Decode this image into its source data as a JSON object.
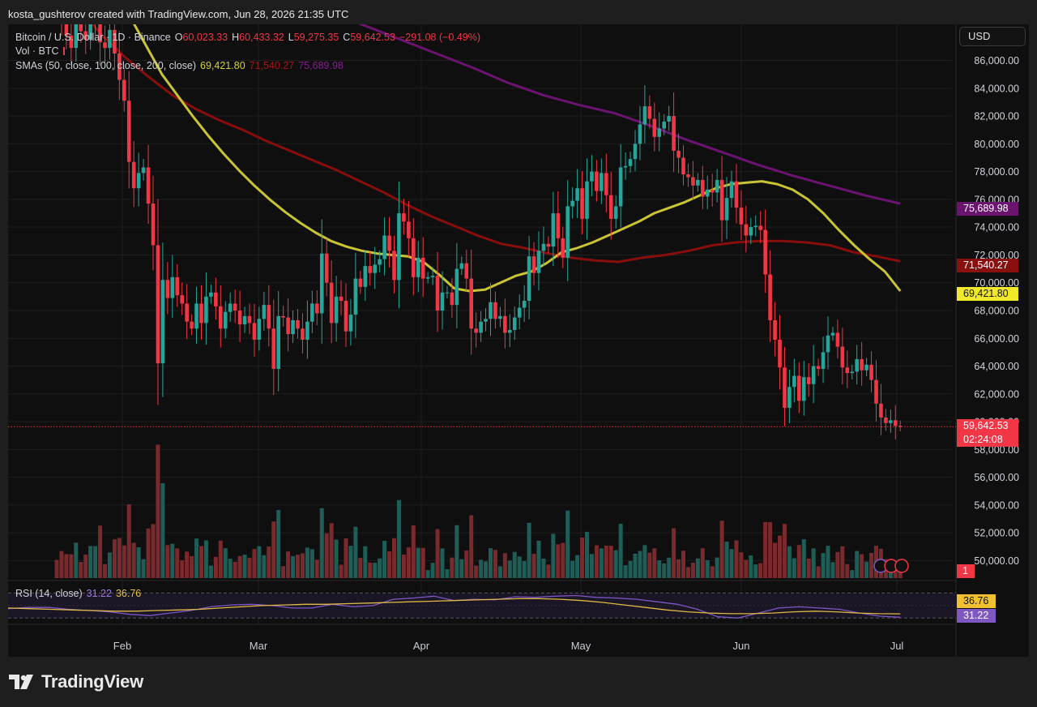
{
  "caption": "kosta_gushterov created with TradingView.com, Jun 28, 2026 21:35 UTC",
  "symbol_legend": {
    "name": "Bitcoin / U.S. Dollar · 1D · Binance",
    "open_label": "O",
    "open": "60,023.33",
    "high_label": "H",
    "high": "60,433.32",
    "low_label": "L",
    "low": "59,275.35",
    "close_label": "C",
    "close": "59,642.53",
    "change": "−291.08 (−0.49%)"
  },
  "volume_legend": "Vol · BTC",
  "sma_legend": {
    "label": "SMAs (50, close, 100, close, 200, close)",
    "sma50": "69,421.80",
    "sma100": "71,540.27",
    "sma200": "75,689.98"
  },
  "rsi_legend": {
    "label": "RSI (14, close)",
    "rsi": "31.22",
    "ma": "36.76"
  },
  "currency_button": "USD",
  "badges": {
    "sma200": "75,689.98",
    "sma100": "71,540.27",
    "sma50": "69,421.80",
    "last_price": "59,642.53",
    "countdown": "02:24:08",
    "volume_count": "1",
    "rsi_ma": "36.76",
    "rsi": "31.22"
  },
  "logo_text": "TradingView",
  "colors": {
    "up": "#26a69a",
    "down": "#f23645",
    "sma50": "#c9c433",
    "sma100": "#880e0e",
    "sma200": "#6a1470",
    "rsi": "#7e57c2",
    "rsi_ma": "#e0b843",
    "background": "#0f0f0f",
    "page": "#1e1e1e"
  },
  "chart_data": {
    "type": "candlestick",
    "title": "Bitcoin / U.S. Dollar · 1D · Binance",
    "x_ticks": [
      "Feb",
      "Mar",
      "Apr",
      "May",
      "Jun",
      "Jul"
    ],
    "y_ticks": [
      "50,000.00",
      "52,000.00",
      "54,000.00",
      "56,000.00",
      "58,000.00",
      "60,000.00",
      "62,000.00",
      "64,000.00",
      "66,000.00",
      "68,000.00",
      "70,000.00",
      "72,000.00",
      "74,000.00",
      "76,000.00",
      "78,000.00",
      "80,000.00",
      "82,000.00",
      "84,000.00",
      "86,000.00"
    ],
    "price_range": [
      48800,
      88600
    ],
    "close": [
      89500,
      88600,
      87800,
      86900,
      88700,
      88100,
      87500,
      88800,
      90200,
      87300,
      86900,
      88200,
      86500,
      84600,
      83100,
      78700,
      76800,
      77900,
      78300,
      75700,
      72700,
      64200,
      70200,
      68900,
      70400,
      69100,
      68500,
      67200,
      66700,
      68500,
      67100,
      69000,
      69300,
      68300,
      66700,
      67900,
      68500,
      68000,
      67000,
      67600,
      67100,
      65900,
      67400,
      68400,
      66700,
      63800,
      67600,
      67500,
      66300,
      67300,
      66700,
      65900,
      67200,
      68500,
      67800,
      72100,
      70000,
      67100,
      69000,
      68700,
      66500,
      67700,
      70300,
      69700,
      71200,
      70700,
      71300,
      71700,
      73400,
      72300,
      70200,
      75000,
      74400,
      73200,
      70400,
      71800,
      70300,
      70400,
      70500,
      68000,
      69300,
      69300,
      68400,
      71000,
      71400,
      70300,
      66700,
      66400,
      67200,
      67400,
      68600,
      67400,
      67600,
      66400,
      66600,
      67500,
      68200,
      68700,
      71900,
      70700,
      72300,
      72800,
      72600,
      75000,
      73200,
      71800,
      75500,
      75900,
      76800,
      74600,
      77300,
      78000,
      76600,
      77900,
      76300,
      74600,
      75500,
      78300,
      78400,
      78900,
      80000,
      81400,
      82700,
      81800,
      80500,
      81100,
      81600,
      82000,
      79500,
      79000,
      77800,
      77600,
      77000,
      77400,
      76200,
      76700,
      76500,
      77400,
      74500,
      76100,
      77300,
      75400,
      74200,
      73400,
      74000,
      74100,
      73800,
      70600,
      67300,
      65900,
      63900,
      61000,
      62500,
      63300,
      61500,
      63200,
      62700,
      64000,
      63800,
      65000,
      66200,
      66400,
      65400,
      63900,
      63500,
      63600,
      64500,
      63700,
      64100,
      63000,
      61300,
      60300,
      59900,
      60100,
      59700,
      59643
    ],
    "sma50": [
      102000,
      100500,
      99000,
      97500,
      96000,
      94500,
      92800,
      91000,
      89000,
      87000,
      85000,
      83500,
      82000,
      80600,
      79300,
      78100,
      77000,
      76000,
      75100,
      74300,
      73600,
      73000,
      72600,
      72300,
      72100,
      72000,
      71900,
      71500,
      70600,
      69600,
      69400,
      69500,
      70000,
      70500,
      70800,
      71400,
      72200,
      72500,
      72900,
      73400,
      73900,
      74400,
      75000,
      75400,
      75800,
      76300,
      76800,
      77100,
      77200,
      77300,
      77100,
      76700,
      76000,
      75000,
      73800,
      72700,
      71700,
      70800,
      69400
    ],
    "sma100": [
      95000,
      93800,
      92000,
      89800,
      87800,
      86200,
      84800,
      83500,
      82500,
      81700,
      81000,
      80200,
      79500,
      78800,
      78100,
      77300,
      76500,
      75600,
      74800,
      74100,
      73400,
      72800,
      72500,
      72100,
      71800,
      71600,
      71500,
      71800,
      72000,
      72300,
      72700,
      72900,
      73000,
      73000,
      72900,
      72700,
      72200,
      71900,
      71540
    ],
    "sma200": [
      99000,
      98000,
      97000,
      96000,
      95000,
      94000,
      93000,
      91900,
      90700,
      89500,
      88500,
      87500,
      86500,
      85500,
      84400,
      83500,
      82800,
      82200,
      81300,
      80300,
      79400,
      78500,
      77700,
      77000,
      76300,
      75690
    ],
    "rsi": [
      45,
      47,
      47,
      44,
      42,
      40,
      36,
      34,
      38,
      42,
      48,
      51,
      52,
      50,
      46,
      46,
      52,
      48,
      50,
      60,
      62,
      65,
      58,
      60,
      59,
      64,
      63,
      65,
      66,
      63,
      62,
      60,
      56,
      52,
      44,
      32,
      30,
      38,
      46,
      48,
      46,
      44,
      38,
      33,
      31.22
    ],
    "rsi_ma": [
      46,
      45,
      44,
      43,
      42,
      41,
      41,
      42,
      43,
      44,
      46,
      48,
      50,
      51,
      52,
      52,
      53,
      54,
      55,
      56,
      57,
      58,
      59,
      60,
      61,
      61,
      60,
      58,
      55,
      51,
      47,
      43,
      40,
      38,
      37,
      37,
      38,
      40,
      41,
      40,
      38,
      37,
      36.76
    ]
  }
}
